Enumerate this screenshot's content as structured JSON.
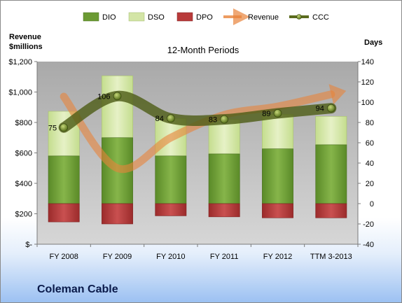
{
  "company": "Coleman Cable",
  "chart_data": {
    "type": "bar",
    "subtitle": "12-Month Periods",
    "left_axis": {
      "title_line1": "Revenue",
      "title_line2": "$millions",
      "range": [
        0,
        1200
      ],
      "ticks": [
        0,
        200,
        400,
        600,
        800,
        1000,
        1200
      ],
      "tick_labels": [
        "$-",
        "$200",
        "$400",
        "$600",
        "$800",
        "$1,000",
        "$1,200"
      ]
    },
    "right_axis": {
      "title": "Days",
      "range": [
        -40,
        140
      ],
      "ticks": [
        -40,
        -20,
        0,
        20,
        40,
        60,
        80,
        100,
        120,
        140
      ],
      "tick_labels": [
        "-40",
        "-20",
        "0",
        "20",
        "40",
        "60",
        "80",
        "100",
        "120",
        "140"
      ]
    },
    "categories": [
      "FY 2008",
      "FY 2009",
      "FY 2010",
      "FY 2011",
      "FY 2012",
      "TTM 3-2013"
    ],
    "series": [
      {
        "name": "DIO",
        "type": "stacked-bar",
        "axis": "right",
        "values": [
          47,
          65,
          47,
          49,
          54,
          58
        ]
      },
      {
        "name": "DSO",
        "type": "stacked-bar",
        "axis": "right",
        "values": [
          44,
          61,
          37,
          34,
          34,
          28
        ]
      },
      {
        "name": "DPO",
        "type": "negative-bar",
        "axis": "right",
        "values": [
          -18,
          -20,
          -12,
          -13,
          -14,
          -14
        ]
      },
      {
        "name": "Revenue",
        "type": "line",
        "axis": "left",
        "values": [
          970,
          500,
          700,
          850,
          905,
          985
        ]
      },
      {
        "name": "CCC",
        "type": "line",
        "axis": "right",
        "values": [
          75,
          106,
          84,
          83,
          89,
          94
        ],
        "data_labels": [
          "75",
          "106",
          "84",
          "83",
          "89",
          "94"
        ]
      }
    ],
    "legend_position": "top",
    "grid": false,
    "colors": {
      "DIO": "#6b9a33",
      "DSO": "#d3e5a6",
      "DPO": "#b83a3a",
      "Revenue": "#e8833a",
      "CCC": "#5b6b1e",
      "plot_background": "#b7b7b7"
    }
  }
}
